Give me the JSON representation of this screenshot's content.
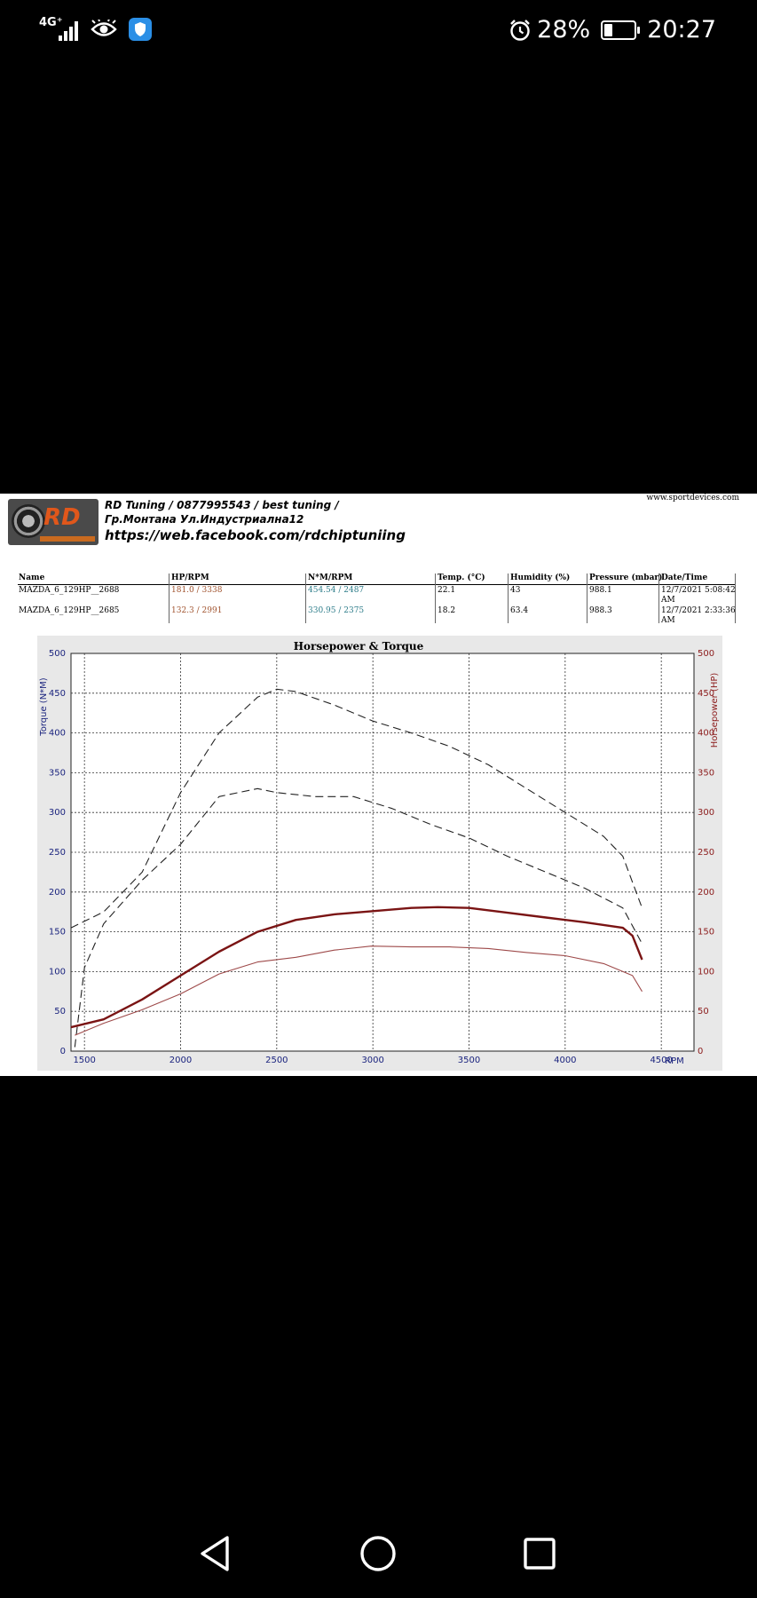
{
  "status_bar": {
    "network": "4G⁺",
    "battery_percent": "28%",
    "battery_level": 0.28,
    "time": "20:27",
    "icons": [
      "signal-icon",
      "eye-icon",
      "shield-icon",
      "alarm-icon",
      "battery-icon"
    ]
  },
  "report": {
    "header_line1": "RD Tuning / 0877995543 / best tuning /",
    "header_line2": "Гр.Монтана Ул.Индустриална12",
    "header_line3": "https://web.facebook.com/rdchiptuniing",
    "logo_text": "RD",
    "website": "www.sportdevices.com",
    "table": {
      "headers": [
        "Name",
        "HP/RPM",
        "N*M/RPM",
        "Temp. (°C)",
        "Humidity (%)",
        "Pressure (mbar)",
        "Date/Time"
      ],
      "rows": [
        [
          "MAZDA_6_129HP__2688",
          "181.0 / 3338",
          "454.54 / 2487",
          "22.1",
          "43",
          "988.1",
          "12/7/2021 5:08:42",
          "AM"
        ],
        [
          "MAZDA_6_129HP__2685",
          "132.3 / 2991",
          "330.95 / 2375",
          "18.2",
          "63.4",
          "988.3",
          "12/7/2021 2:33:36",
          "AM"
        ]
      ]
    }
  },
  "chart_data": {
    "type": "line",
    "title": "Horsepower & Torque",
    "xlabel": "RPM",
    "ylabel_left": "Torque (N*M)",
    "ylabel_right": "Horsepower (HP)",
    "xlim": [
      1430,
      4670
    ],
    "ylim": [
      0,
      500
    ],
    "x_ticks": [
      "1500",
      "2000",
      "2500",
      "3000",
      "3500",
      "4000",
      "4500"
    ],
    "y_ticks": [
      "0",
      "50",
      "100",
      "150",
      "200",
      "250",
      "300",
      "350",
      "400",
      "450",
      "500"
    ],
    "grid": true,
    "colors": {
      "torque": "#222222",
      "hp_2688": "#7a1414",
      "hp_2685": "#9e4a4a"
    },
    "series": [
      {
        "name": "MAZDA_6_129HP__2688",
        "kind": "torque",
        "style": "dashed",
        "x": [
          1430,
          1600,
          1800,
          2000,
          2200,
          2400,
          2500,
          2600,
          2800,
          3000,
          3200,
          3400,
          3600,
          3800,
          4000,
          4200,
          4300,
          4400
        ],
        "y": [
          155,
          175,
          225,
          325,
          400,
          445,
          455,
          452,
          435,
          415,
          400,
          383,
          360,
          330,
          300,
          270,
          245,
          180
        ]
      },
      {
        "name": "MAZDA_6_129HP__2685",
        "kind": "torque",
        "style": "dashed",
        "x": [
          1450,
          1500,
          1600,
          1800,
          2000,
          2200,
          2400,
          2500,
          2700,
          2900,
          3100,
          3300,
          3500,
          3700,
          3900,
          4100,
          4300,
          4400
        ],
        "y": [
          5,
          105,
          160,
          215,
          260,
          320,
          330,
          325,
          320,
          320,
          305,
          285,
          268,
          245,
          225,
          205,
          180,
          135
        ]
      },
      {
        "name": "MAZDA_6_129HP__2688",
        "kind": "hp",
        "style": "solid",
        "x": [
          1430,
          1600,
          1800,
          2000,
          2200,
          2400,
          2600,
          2800,
          3000,
          3200,
          3338,
          3500,
          3700,
          3900,
          4100,
          4300,
          4350,
          4400
        ],
        "y": [
          30,
          40,
          65,
          95,
          125,
          150,
          165,
          172,
          176,
          180,
          181,
          180,
          174,
          168,
          162,
          155,
          145,
          115
        ]
      },
      {
        "name": "MAZDA_6_129HP__2685",
        "kind": "hp",
        "style": "solid",
        "x": [
          1450,
          1600,
          1800,
          2000,
          2200,
          2400,
          2600,
          2800,
          2991,
          3200,
          3400,
          3600,
          3800,
          4000,
          4200,
          4350,
          4400
        ],
        "y": [
          20,
          35,
          52,
          72,
          97,
          112,
          118,
          127,
          132,
          131,
          131,
          129,
          124,
          120,
          110,
          95,
          75
        ]
      }
    ]
  }
}
